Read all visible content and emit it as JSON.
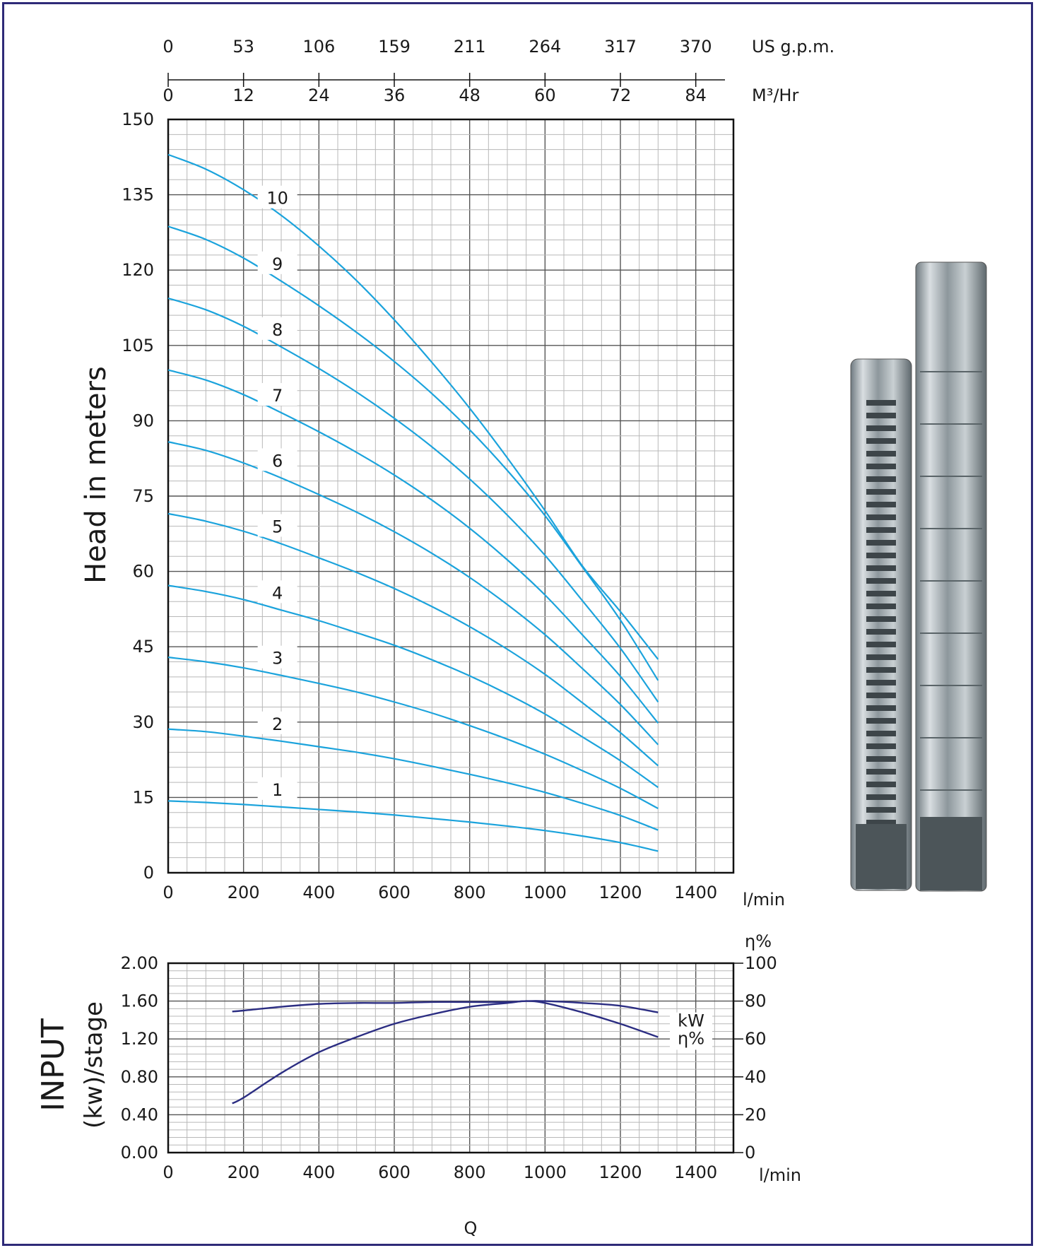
{
  "chart_data": [
    {
      "type": "line",
      "name": "head-chart",
      "xlabel": "l/min",
      "ylabel": "Head in meters",
      "xlim": [
        0,
        1500
      ],
      "ylim": [
        0,
        150
      ],
      "x_ticks": [
        "0",
        "200",
        "400",
        "600",
        "800",
        "1000",
        "1200",
        "1400"
      ],
      "y_ticks": [
        "0",
        "15",
        "30",
        "45",
        "60",
        "75",
        "90",
        "105",
        "120",
        "135",
        "150"
      ],
      "top_axes": [
        {
          "unit": "US g.p.m.",
          "ticks": [
            "0",
            "53",
            "106",
            "159",
            "211",
            "264",
            "317",
            "370"
          ]
        },
        {
          "unit": "M³/Hr",
          "ticks": [
            "0",
            "12",
            "24",
            "36",
            "48",
            "60",
            "72",
            "84"
          ]
        }
      ],
      "grid": true,
      "x": [
        0,
        100,
        200,
        300,
        400,
        500,
        600,
        700,
        800,
        900,
        1000,
        1100,
        1200,
        1300
      ],
      "series": [
        {
          "name": "1",
          "values": [
            14.3,
            14.0,
            13.6,
            13.1,
            12.6,
            12.1,
            11.5,
            10.8,
            10.1,
            9.3,
            8.4,
            7.3,
            6.0,
            4.3
          ]
        },
        {
          "name": "2",
          "values": [
            28.6,
            28.1,
            27.2,
            26.2,
            25.1,
            24.0,
            22.7,
            21.2,
            19.6,
            17.9,
            16.0,
            13.8,
            11.4,
            8.5
          ]
        },
        {
          "name": "3",
          "values": [
            42.9,
            42.0,
            40.8,
            39.3,
            37.7,
            36.0,
            34.0,
            31.8,
            29.3,
            26.6,
            23.6,
            20.3,
            16.8,
            12.8
          ]
        },
        {
          "name": "4",
          "values": [
            57.2,
            56.0,
            54.4,
            52.3,
            50.2,
            47.8,
            45.3,
            42.4,
            39.2,
            35.6,
            31.6,
            27.0,
            22.3,
            17.0
          ]
        },
        {
          "name": "5",
          "values": [
            71.5,
            70.0,
            68.0,
            65.5,
            62.7,
            59.8,
            56.6,
            53.0,
            49.0,
            44.5,
            39.5,
            33.8,
            27.9,
            21.3
          ]
        },
        {
          "name": "6",
          "values": [
            85.8,
            84.1,
            81.6,
            78.6,
            75.3,
            71.8,
            67.9,
            63.6,
            58.8,
            53.4,
            47.4,
            40.6,
            33.5,
            25.5
          ]
        },
        {
          "name": "7",
          "values": [
            100.1,
            98.1,
            95.2,
            91.6,
            87.8,
            83.7,
            79.2,
            74.2,
            68.6,
            62.3,
            55.3,
            47.3,
            39.1,
            29.8
          ]
        },
        {
          "name": "8",
          "values": [
            114.4,
            112.1,
            108.8,
            104.7,
            100.4,
            95.7,
            90.5,
            84.8,
            78.4,
            71.2,
            63.2,
            54.1,
            44.7,
            34.0
          ]
        },
        {
          "name": "9",
          "values": [
            128.7,
            126.1,
            122.4,
            117.8,
            112.9,
            107.6,
            101.8,
            95.4,
            88.2,
            80.1,
            71.1,
            60.8,
            50.3,
            38.3
          ]
        },
        {
          "name": "10",
          "values": [
            143.0,
            140.1,
            136.0,
            130.9,
            124.8,
            117.9,
            110.1,
            101.6,
            92.5,
            82.6,
            72.1,
            61.0,
            52.0,
            42.5
          ]
        }
      ],
      "series_color": "#1ba3dc"
    },
    {
      "type": "line",
      "name": "power-efficiency-chart",
      "xlabel": "l/min",
      "ylabel_line1": "INPUT",
      "ylabel_line2": "(kw)/stage",
      "ylabel_right": "η%",
      "xlim": [
        0,
        1500
      ],
      "ylim": [
        0,
        2.0
      ],
      "ylim_right": [
        0,
        100
      ],
      "x_ticks": [
        "0",
        "200",
        "400",
        "600",
        "800",
        "1000",
        "1200",
        "1400"
      ],
      "y_ticks": [
        "0.00",
        "0.40",
        "0.80",
        "1.20",
        "1.60",
        "2.00"
      ],
      "y_ticks_right": [
        "0",
        "20",
        "40",
        "60",
        "80",
        "100"
      ],
      "grid": true,
      "x": [
        170,
        200,
        300,
        400,
        500,
        600,
        700,
        800,
        900,
        950,
        1000,
        1100,
        1200,
        1300
      ],
      "series": [
        {
          "name": "kW",
          "axis": "left",
          "values": [
            1.49,
            1.5,
            1.54,
            1.57,
            1.58,
            1.58,
            1.59,
            1.59,
            1.59,
            1.6,
            1.6,
            1.58,
            1.55,
            1.48
          ]
        },
        {
          "name": "η%",
          "axis": "right",
          "values": [
            26,
            29,
            42,
            53,
            61,
            68,
            73,
            77,
            79,
            80,
            79,
            74,
            68,
            61
          ]
        }
      ],
      "series_color": "#2b2d82"
    }
  ],
  "bottom_label": "Q",
  "photo": {
    "alt": "Submersible pump units",
    "color": "#9aa3a8"
  }
}
